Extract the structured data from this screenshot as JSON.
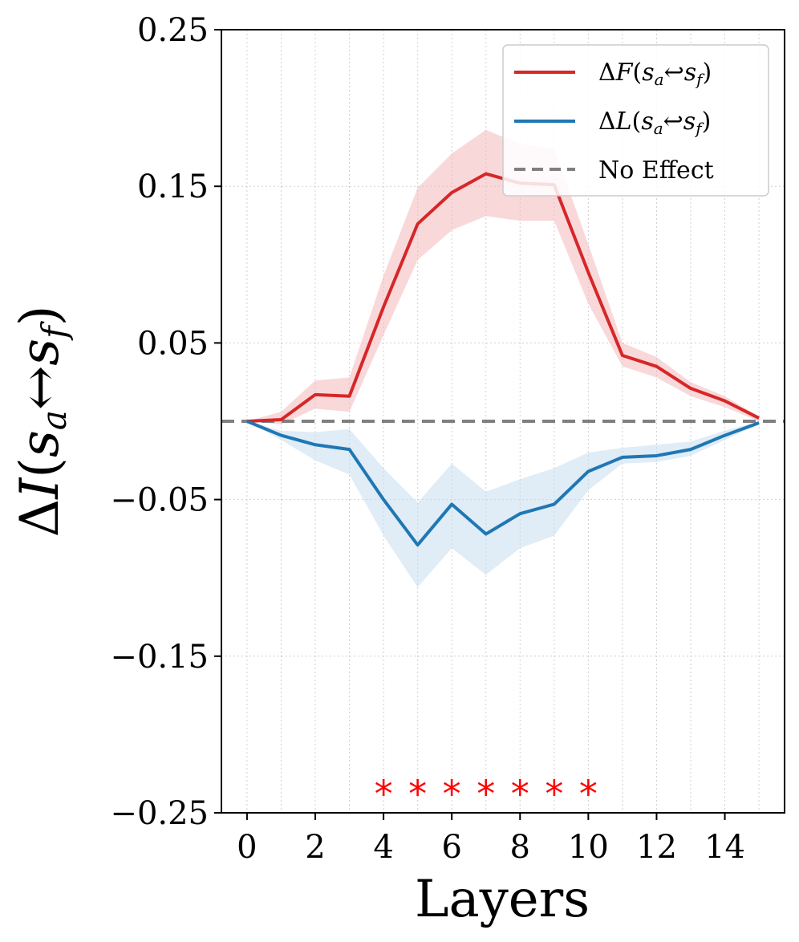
{
  "chart_data": {
    "type": "line",
    "xlabel": "Layers",
    "ylabel": "ΔI(s_a ↔ s_f)",
    "ylabel_parts": {
      "delta": "Δ",
      "var": "I",
      "open": "(",
      "s1": "s",
      "sub1": "a",
      "arrow": "↔",
      "s2": "s",
      "sub2": "f",
      "close": ")"
    },
    "xlim": [
      -0.75,
      15.75
    ],
    "ylim": [
      -0.25,
      0.25
    ],
    "x_ticks": [
      0,
      2,
      4,
      6,
      8,
      10,
      12,
      14
    ],
    "x_tick_labels": [
      "0",
      "2",
      "4",
      "6",
      "8",
      "10",
      "12",
      "14"
    ],
    "y_ticks": [
      0.25,
      0.15,
      0.05,
      -0.05,
      -0.15,
      -0.25
    ],
    "y_tick_labels": [
      "0.25",
      "0.15",
      "0.05",
      "−0.05",
      "−0.15",
      "−0.25"
    ],
    "x_grid_ticks": [
      0,
      1,
      2,
      3,
      4,
      5,
      6,
      7,
      8,
      9,
      10,
      11,
      12,
      13,
      14,
      15
    ],
    "grid": true,
    "legend_position": "top-right",
    "x": [
      0,
      1,
      2,
      3,
      4,
      5,
      6,
      7,
      8,
      9,
      10,
      11,
      12,
      13,
      14,
      15
    ],
    "series": [
      {
        "name": "ΔF(s_a ↔ s_f)",
        "legend_parts": {
          "delta": "Δ",
          "var": "F",
          "open": "(",
          "s1": "s",
          "sub1": "a",
          "arrow": "↩",
          "s2": "s",
          "sub2": "f",
          "close": ")"
        },
        "color": "#d62728",
        "band_color": "#f4b8bc",
        "values": [
          0.0,
          0.001,
          0.017,
          0.016,
          0.073,
          0.126,
          0.146,
          0.158,
          0.152,
          0.151,
          0.095,
          0.042,
          0.035,
          0.021,
          0.013,
          0.002
        ],
        "lower": [
          0.0,
          -0.002,
          0.008,
          0.006,
          0.055,
          0.103,
          0.122,
          0.131,
          0.128,
          0.128,
          0.075,
          0.035,
          0.028,
          0.016,
          0.009,
          0.0
        ],
        "upper": [
          0.0,
          0.006,
          0.026,
          0.028,
          0.093,
          0.149,
          0.171,
          0.186,
          0.177,
          0.174,
          0.113,
          0.05,
          0.041,
          0.025,
          0.016,
          0.003
        ]
      },
      {
        "name": "ΔL(s_a ↔ s_f)",
        "legend_parts": {
          "delta": "Δ",
          "var": "L",
          "open": "(",
          "s1": "s",
          "sub1": "a",
          "arrow": "↩",
          "s2": "s",
          "sub2": "f",
          "close": ")"
        },
        "color": "#1f77b4",
        "band_color": "#c6dcef",
        "values": [
          0.0,
          -0.009,
          -0.015,
          -0.018,
          -0.05,
          -0.079,
          -0.053,
          -0.072,
          -0.059,
          -0.053,
          -0.032,
          -0.023,
          -0.022,
          -0.018,
          -0.009,
          -0.001
        ],
        "lower": [
          0.0,
          -0.012,
          -0.025,
          -0.034,
          -0.073,
          -0.106,
          -0.081,
          -0.098,
          -0.081,
          -0.073,
          -0.044,
          -0.027,
          -0.026,
          -0.022,
          -0.012,
          -0.002
        ],
        "upper": [
          0.0,
          -0.006,
          -0.007,
          -0.005,
          -0.03,
          -0.052,
          -0.027,
          -0.045,
          -0.037,
          -0.03,
          -0.02,
          -0.017,
          -0.015,
          -0.013,
          -0.006,
          0.0
        ]
      }
    ],
    "reference_line": {
      "name": "No Effect",
      "y": 0.0,
      "color": "#7f7f7f",
      "style": "dashed"
    },
    "significance_markers": {
      "symbol": "*",
      "color": "#ff0000",
      "y": -0.235,
      "x": [
        4,
        5,
        6,
        7,
        8,
        9,
        10
      ]
    }
  }
}
